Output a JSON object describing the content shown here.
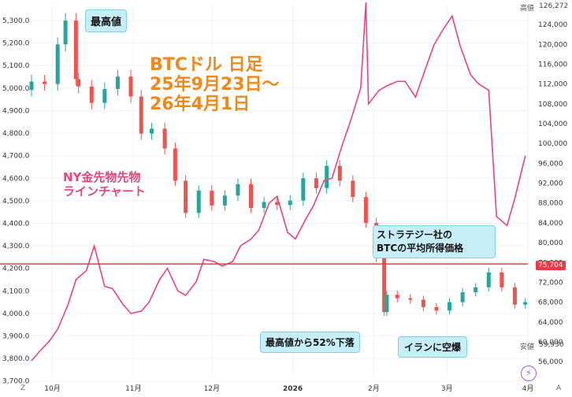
{
  "colors": {
    "candle_up": "#26a69a",
    "candle_down": "#ef5350",
    "gold_line": "#e8457f",
    "ref_line": "#f23645",
    "title": "#f0891a",
    "callout_bg": "#c7eef7"
  },
  "annotations": {
    "title_lines": [
      "BTCドル 日足",
      "25年9月23日〜",
      "26年4月1日"
    ],
    "gold_label_lines": [
      "NY金先物先物",
      "ラインチャート"
    ],
    "peak": "最高値",
    "strategy_lines": [
      "ストラテジー社の",
      "BTCの平均所得価格"
    ],
    "drop": "最高値から52%下落",
    "iran": "イランに空爆"
  },
  "right_axis_tags": {
    "high_label": "高値",
    "high_value": "126,272",
    "low_label": "安値",
    "low_value": "59,930",
    "ref_value": "75,704"
  },
  "bottom_icons": {
    "left_glyph": "Z",
    "right_glyph": "A",
    "lightning": "⚡"
  },
  "chart_data": [
    {
      "type": "line",
      "series": [
        {
          "name": "NY金先物先物",
          "axis": "left"
        }
      ],
      "x_ticks": [
        "10月",
        "11月",
        "12月",
        "2026",
        "2月",
        "3月",
        "4月"
      ],
      "ylim": [
        3720,
        5370
      ],
      "y_ticks": [
        "3,700.0",
        "3,800.0",
        "3,900.0",
        "4,000.0",
        "4,100.0",
        "4,200.0",
        "4,300.0",
        "4,400.0",
        "4,500.0",
        "4,600.0",
        "4,700.0",
        "4,800.0",
        "4,900.0",
        "5,000.0",
        "5,100.0",
        "5,200.0",
        "5,300.0"
      ],
      "x": [
        "2025-09-23",
        "2025-09-26",
        "2025-09-30",
        "2025-10-03",
        "2025-10-07",
        "2025-10-10",
        "2025-10-14",
        "2025-10-17",
        "2025-10-21",
        "2025-10-24",
        "2025-10-28",
        "2025-10-31",
        "2025-11-04",
        "2025-11-07",
        "2025-11-11",
        "2025-11-14",
        "2025-11-18",
        "2025-11-21",
        "2025-11-25",
        "2025-11-28",
        "2025-12-02",
        "2025-12-05",
        "2025-12-09",
        "2025-12-12",
        "2025-12-16",
        "2025-12-19",
        "2025-12-23",
        "2025-12-26",
        "2025-12-30",
        "2026-01-02",
        "2026-01-06",
        "2026-01-09",
        "2026-01-13",
        "2026-01-16",
        "2026-01-20",
        "2026-01-23",
        "2026-01-27",
        "2026-01-29",
        "2026-01-30",
        "2026-02-03",
        "2026-02-06",
        "2026-02-10",
        "2026-02-13",
        "2026-02-17",
        "2026-02-20",
        "2026-02-24",
        "2026-02-27",
        "2026-03-03",
        "2026-03-06",
        "2026-03-10",
        "2026-03-13",
        "2026-03-17",
        "2026-03-20",
        "2026-03-24",
        "2026-03-27",
        "2026-03-31"
      ],
      "y": [
        3790,
        3830,
        3880,
        3930,
        4040,
        4150,
        4190,
        4300,
        4120,
        4110,
        4040,
        4000,
        4010,
        4050,
        4150,
        4200,
        4100,
        4080,
        4140,
        4240,
        4230,
        4210,
        4230,
        4300,
        4330,
        4370,
        4490,
        4520,
        4360,
        4330,
        4420,
        4480,
        4590,
        4600,
        4750,
        4850,
        5000,
        5380,
        4930,
        4990,
        5010,
        5030,
        5030,
        4960,
        5060,
        5190,
        5250,
        5320,
        5190,
        5060,
        5020,
        4990,
        4430,
        4390,
        4510,
        4700
      ]
    },
    {
      "type": "candlestick",
      "series": [
        {
          "name": "BTCドル 日足",
          "axis": "right"
        }
      ],
      "ylim": [
        53000,
        128000
      ],
      "y_ticks": [
        "56,000",
        "60,000",
        "64,000",
        "68,000",
        "72,000",
        "76,000",
        "80,000",
        "84,000",
        "88,000",
        "92,000",
        "96,000",
        "100,000",
        "104,000",
        "108,000",
        "112,000",
        "116,000",
        "120,000",
        "124,000"
      ],
      "x": [
        "2025-09-23",
        "2025-09-28",
        "2025-10-03",
        "2025-10-06",
        "2025-10-10",
        "2025-10-11",
        "2025-10-16",
        "2025-10-21",
        "2025-10-26",
        "2025-10-31",
        "2025-11-04",
        "2025-11-08",
        "2025-11-13",
        "2025-11-17",
        "2025-11-21",
        "2025-11-26",
        "2025-12-01",
        "2025-12-06",
        "2025-12-11",
        "2025-12-16",
        "2025-12-21",
        "2025-12-26",
        "2025-12-31",
        "2026-01-05",
        "2026-01-10",
        "2026-01-14",
        "2026-01-19",
        "2026-01-24",
        "2026-01-29",
        "2026-02-02",
        "2026-02-05",
        "2026-02-06",
        "2026-02-10",
        "2026-02-15",
        "2026-02-20",
        "2026-02-25",
        "2026-03-02",
        "2026-03-07",
        "2026-03-12",
        "2026-03-17",
        "2026-03-22",
        "2026-03-27",
        "2026-03-31"
      ],
      "close": [
        112500,
        112000,
        120000,
        124800,
        113000,
        111500,
        108200,
        111000,
        113500,
        109500,
        102000,
        103000,
        99000,
        92500,
        86000,
        90500,
        87500,
        89500,
        91800,
        87000,
        88200,
        87600,
        88500,
        93000,
        91000,
        95500,
        92500,
        89200,
        84000,
        77000,
        66000,
        69500,
        68800,
        68500,
        67000,
        66300,
        68000,
        70000,
        71000,
        74000,
        71000,
        67500,
        68000
      ]
    }
  ]
}
